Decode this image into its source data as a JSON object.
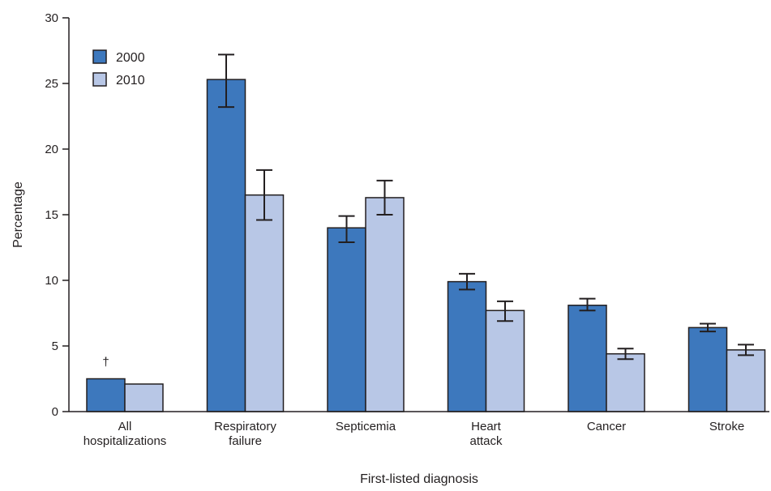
{
  "chart_data": {
    "type": "bar",
    "categories": [
      [
        "All",
        "hospitalizations"
      ],
      [
        "Respiratory",
        "failure"
      ],
      [
        "Septicemia"
      ],
      [
        "Heart",
        "attack"
      ],
      [
        "Cancer"
      ],
      [
        "Stroke"
      ]
    ],
    "series": [
      {
        "name": "2000",
        "color": "#3d78bd",
        "values": [
          2.5,
          25.3,
          14.0,
          9.9,
          8.1,
          6.4
        ],
        "ci_low": [
          2.45,
          23.2,
          12.9,
          9.3,
          7.7,
          6.1
        ],
        "ci_high": [
          2.55,
          27.2,
          14.9,
          10.5,
          8.6,
          6.7
        ]
      },
      {
        "name": "2010",
        "color": "#b8c7e6",
        "values": [
          2.1,
          16.5,
          16.3,
          7.7,
          4.4,
          4.7
        ],
        "ci_low": [
          2.05,
          14.6,
          15.0,
          6.9,
          4.0,
          4.3
        ],
        "ci_high": [
          2.15,
          18.4,
          17.6,
          8.4,
          4.8,
          5.1
        ]
      }
    ],
    "xlabel": "First-listed diagnosis",
    "ylabel": "Percentage",
    "ylim": [
      0,
      30
    ],
    "yticks": [
      0,
      5,
      10,
      15,
      20,
      25,
      30
    ],
    "annotation": {
      "text": "†",
      "category_index": 0,
      "series_index": 0
    },
    "legend": "top-left",
    "grid": false
  }
}
